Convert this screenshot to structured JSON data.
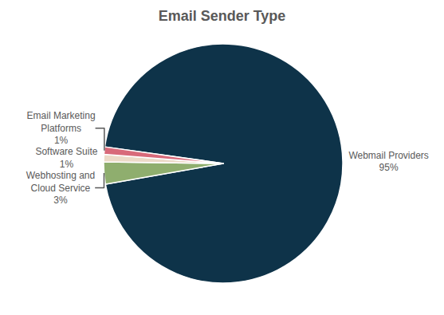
{
  "chart_data": {
    "type": "pie",
    "title": "Email Sender Type",
    "categories": [
      "Webmail Providers",
      "Webhosting and Cloud Service",
      "Software Suite",
      "Email Marketing Platforms"
    ],
    "values": [
      95,
      3,
      1,
      1
    ],
    "value_labels": [
      "95%",
      "3%",
      "1%",
      "1%"
    ],
    "colors": [
      "#0e3349",
      "#8fae6e",
      "#ecdac8",
      "#d86a7a"
    ],
    "data_labels": true
  }
}
